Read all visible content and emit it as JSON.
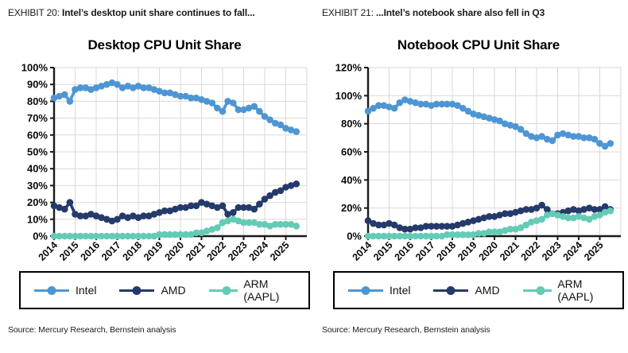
{
  "page": {
    "background": "#ffffff"
  },
  "panels": [
    {
      "exhibit_label": "EXHIBIT 20:",
      "exhibit_title": "Intel’s desktop unit share continues to fall...",
      "source": "Source: Mercury Research, Bernstein analysis"
    },
    {
      "exhibit_label": "EXHIBIT 21:",
      "exhibit_title": "...Intel’s notebook share also fell in Q3",
      "source": "Source: Mercury Research, Bernstein analysis"
    }
  ],
  "chart_data": [
    {
      "type": "line",
      "title": "Desktop CPU Unit Share",
      "xlabel": "",
      "ylabel": "",
      "x_frequency": "quarterly",
      "x_range": [
        "2014Q1",
        "2025Q3"
      ],
      "x_tick_labels": [
        "2014",
        "2015",
        "2016",
        "2017",
        "2018",
        "2019",
        "2020",
        "2021",
        "2022",
        "2023",
        "2024",
        "2025"
      ],
      "ylim": [
        0,
        100
      ],
      "y_tick_step": 10,
      "y_tick_suffix": "%",
      "grid": true,
      "legend_position": "bottom",
      "marker": "circle",
      "series": [
        {
          "name": "Intel",
          "color": "#4E96D3",
          "values": [
            82,
            83,
            84,
            80,
            87,
            88,
            88,
            87,
            88,
            89,
            90,
            91,
            90,
            88,
            89,
            88,
            89,
            88,
            88,
            87,
            86,
            85,
            85,
            84,
            83,
            83,
            82,
            82,
            81,
            80,
            79,
            76,
            74,
            80,
            79,
            75,
            75,
            76,
            77,
            74,
            71,
            69,
            67,
            66,
            64,
            63,
            62
          ]
        },
        {
          "name": "AMD",
          "color": "#243A6B",
          "values": [
            18,
            17,
            16,
            20,
            13,
            12,
            12,
            13,
            12,
            11,
            10,
            9,
            10,
            12,
            11,
            12,
            11,
            12,
            12,
            13,
            14,
            15,
            15,
            16,
            17,
            17,
            18,
            18,
            20,
            19,
            18,
            17,
            18,
            13,
            14,
            17,
            17,
            17,
            16,
            19,
            22,
            24,
            26,
            27,
            29,
            30,
            31
          ]
        },
        {
          "name": "ARM (AAPL)",
          "color": "#63CBB6",
          "values": [
            0,
            0,
            0,
            0,
            0,
            0,
            0,
            0,
            0,
            0,
            0,
            0,
            0,
            0,
            0,
            0,
            0,
            0,
            0,
            0,
            1,
            1,
            1,
            1,
            1,
            1,
            1,
            2,
            2,
            3,
            4,
            5,
            8,
            9,
            10,
            9,
            8,
            8,
            8,
            7,
            7,
            6,
            7,
            7,
            7,
            7,
            6
          ]
        }
      ]
    },
    {
      "type": "line",
      "title": "Notebook CPU Unit Share",
      "xlabel": "",
      "ylabel": "",
      "x_frequency": "quarterly",
      "x_range": [
        "2014Q1",
        "2025Q3"
      ],
      "x_tick_labels": [
        "2014",
        "2015",
        "2016",
        "2017",
        "2018",
        "2019",
        "2020",
        "2021",
        "2022",
        "2023",
        "2024",
        "2025"
      ],
      "ylim": [
        0,
        120
      ],
      "y_tick_step": 20,
      "y_tick_suffix": "%",
      "grid": true,
      "legend_position": "bottom",
      "marker": "circle",
      "series": [
        {
          "name": "Intel",
          "color": "#4E96D3",
          "values": [
            89,
            91,
            93,
            93,
            92,
            91,
            95,
            97,
            96,
            95,
            94,
            94,
            93,
            94,
            94,
            94,
            94,
            93,
            91,
            89,
            87,
            86,
            85,
            84,
            83,
            82,
            80,
            79,
            78,
            76,
            73,
            71,
            70,
            71,
            69,
            68,
            72,
            73,
            72,
            71,
            71,
            70,
            70,
            69,
            66,
            64,
            66
          ]
        },
        {
          "name": "AMD",
          "color": "#243A6B",
          "values": [
            11,
            9,
            8,
            8,
            9,
            8,
            6,
            5,
            5,
            6,
            6,
            7,
            7,
            7,
            7,
            7,
            7,
            8,
            9,
            10,
            11,
            12,
            13,
            14,
            14,
            15,
            16,
            16,
            17,
            18,
            19,
            19,
            20,
            22,
            19,
            16,
            16,
            17,
            18,
            19,
            18,
            19,
            20,
            19,
            19,
            21,
            19
          ]
        },
        {
          "name": "ARM (AAPL)",
          "color": "#63CBB6",
          "values": [
            0,
            0,
            0,
            0,
            0,
            0,
            0,
            0,
            0,
            0,
            0,
            0,
            0,
            0,
            0,
            1,
            1,
            1,
            1,
            1,
            1,
            2,
            2,
            3,
            3,
            3,
            4,
            5,
            5,
            6,
            8,
            10,
            11,
            12,
            15,
            16,
            15,
            14,
            13,
            13,
            14,
            13,
            12,
            14,
            15,
            17,
            18
          ]
        }
      ]
    }
  ]
}
